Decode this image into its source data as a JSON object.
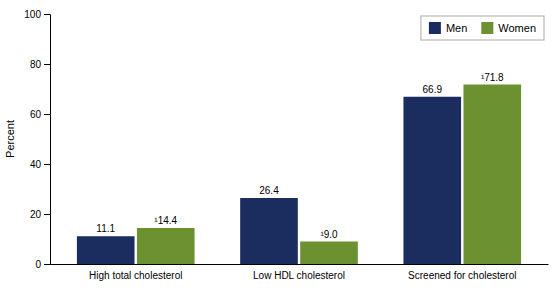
{
  "chart_data": {
    "type": "bar",
    "categories": [
      "High total cholesterol",
      "Low HDL cholesterol",
      "Screened for cholesterol"
    ],
    "series": [
      {
        "name": "Men",
        "color": "#1b2d5e",
        "values": [
          11.1,
          26.4,
          66.9
        ]
      },
      {
        "name": "Women",
        "color": "#6b9130",
        "values": [
          14.4,
          9.0,
          71.8
        ],
        "value_labels": [
          "¹14.4",
          "¹9.0",
          "¹71.8"
        ]
      }
    ],
    "ylabel": "Percent",
    "ylim": [
      0,
      100
    ],
    "yticks": [
      0,
      20,
      40,
      60,
      80,
      100
    ],
    "grid": false,
    "legend": "upper right",
    "data_labels": true
  }
}
